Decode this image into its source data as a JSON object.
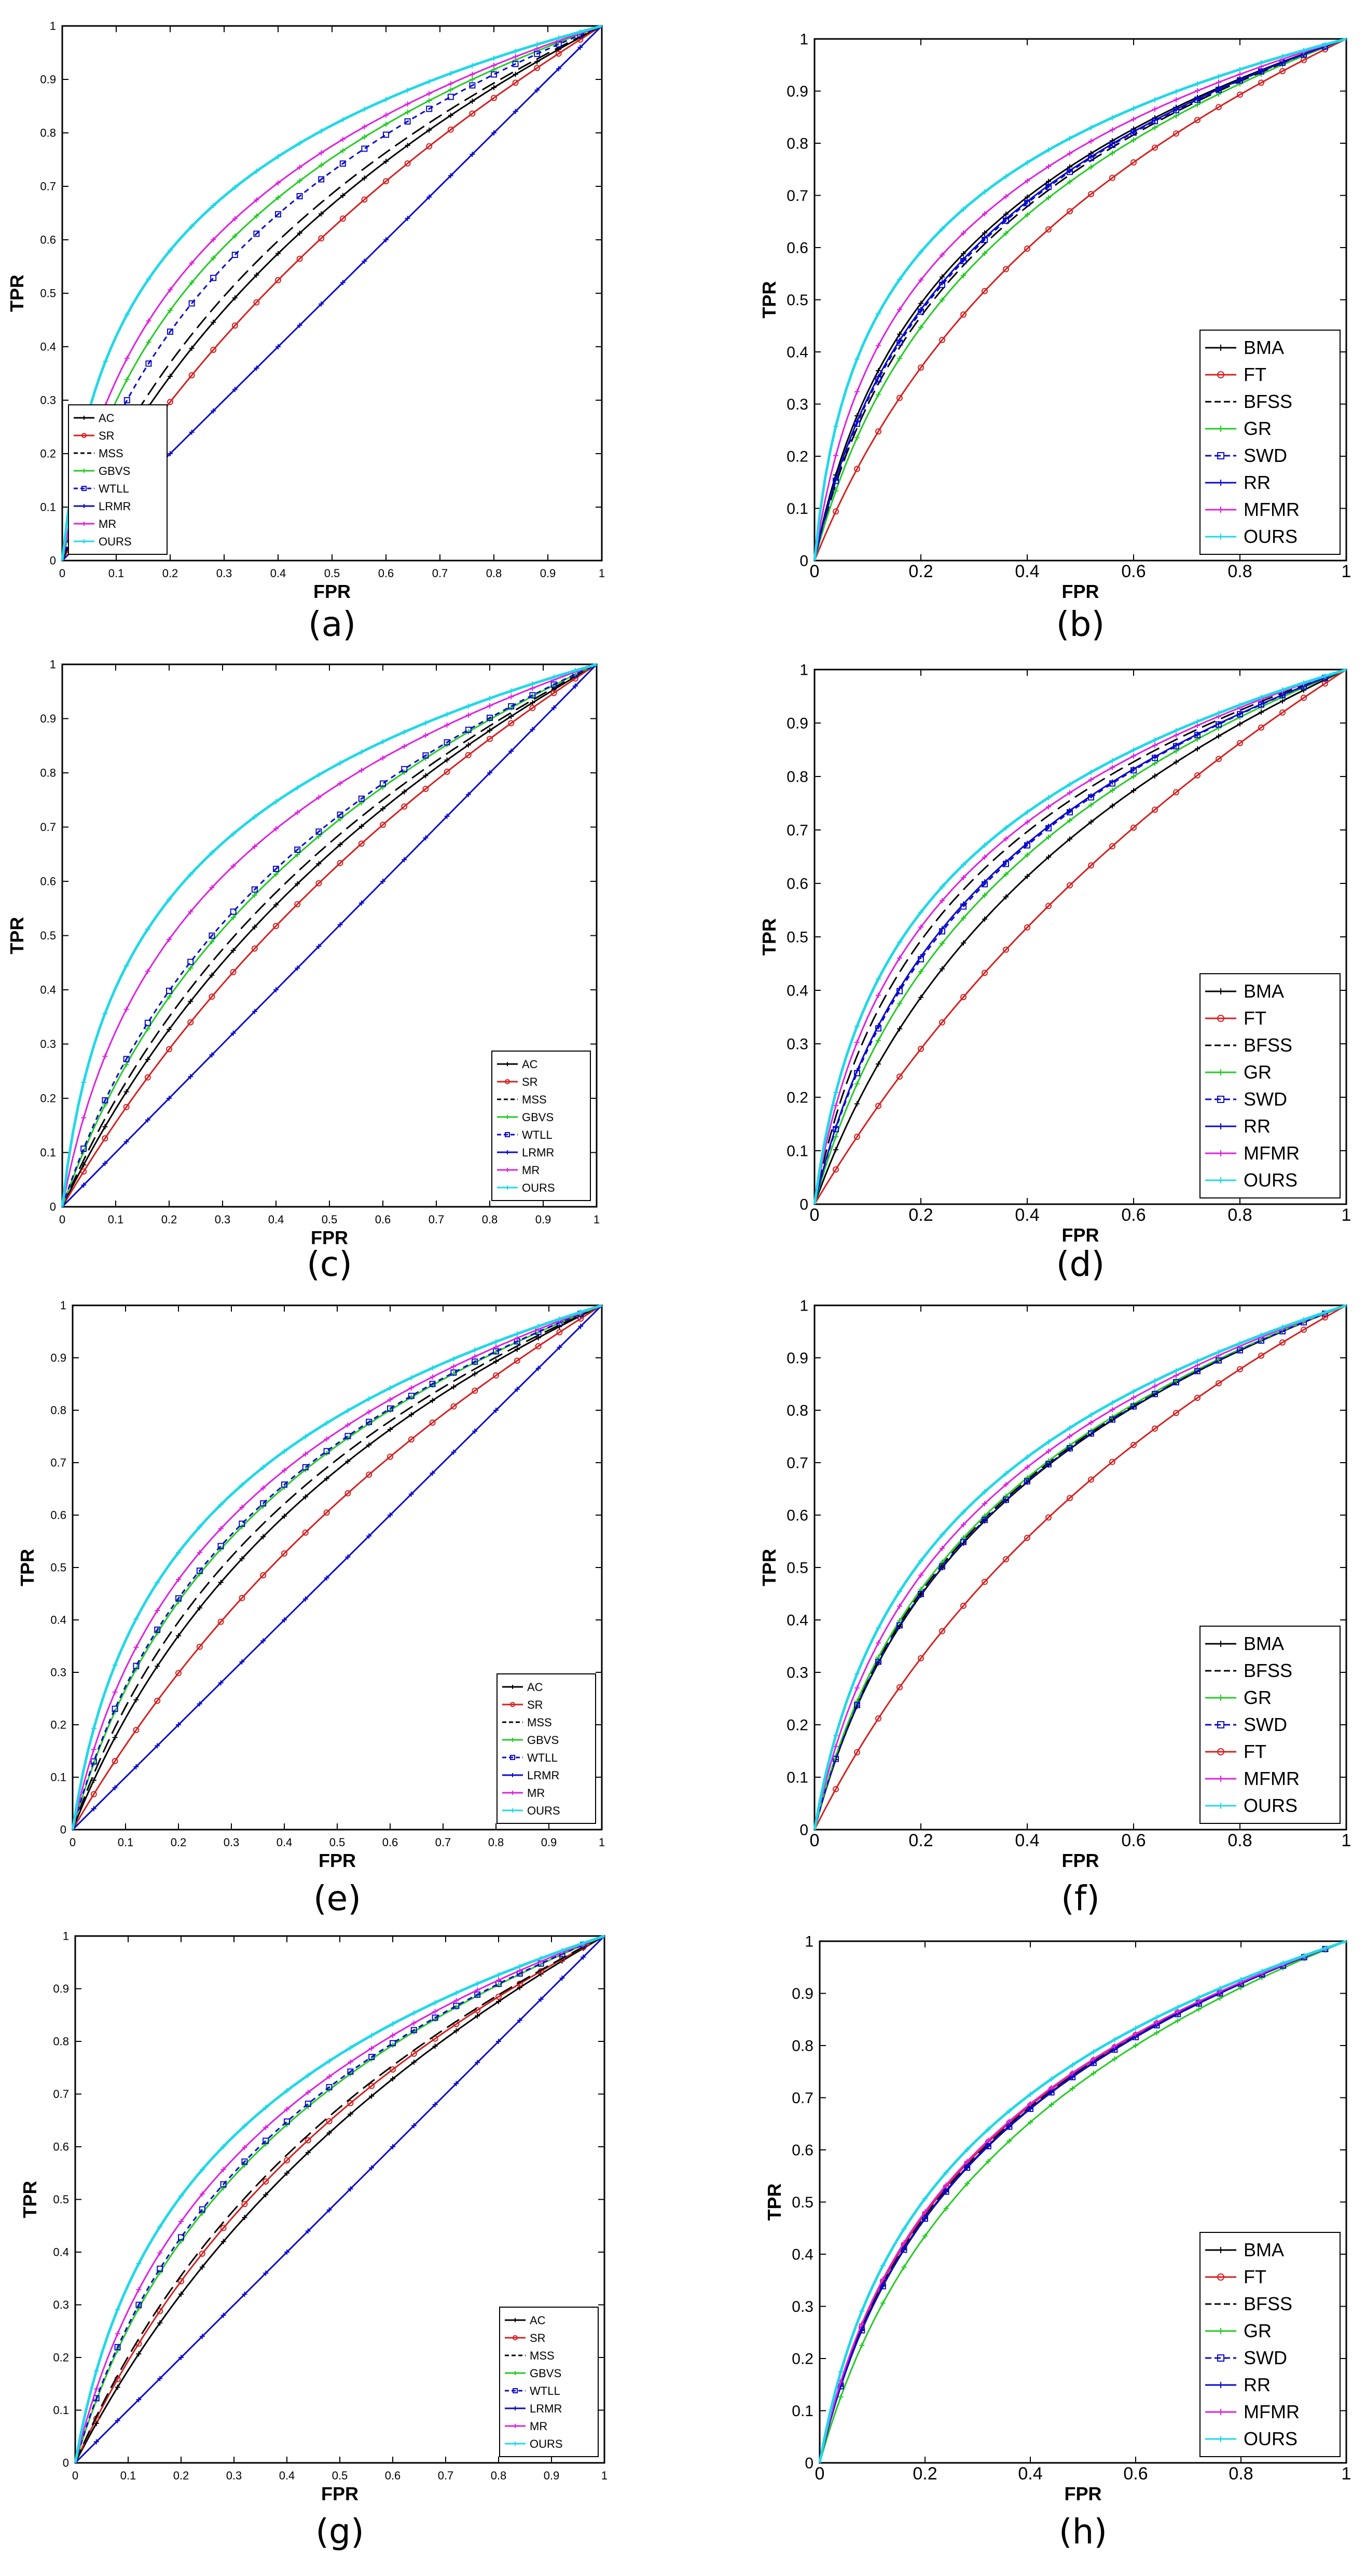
{
  "figure": {
    "colors": {
      "AC": "#000000",
      "SR": "#d62020",
      "MSS": "#000000",
      "GBVS": "#22cc22",
      "WTLL": "#0a0acc",
      "LRMR": "#0a0acc",
      "MR": "#e020e0",
      "OURS": "#20d8e8",
      "BMA": "#000000",
      "FT": "#d62020",
      "BFSS": "#000000",
      "GR": "#22cc22",
      "SWD": "#0a0acc",
      "RR": "#0a0acc",
      "MFMR": "#e020e0"
    }
  },
  "chart_data": [
    {
      "id": "a",
      "type": "line",
      "title": "",
      "caption": "(a)",
      "xlabel": "FPR",
      "ylabel": "TPR",
      "xlim": [
        0,
        1
      ],
      "ylim": [
        0,
        1
      ],
      "xticks": [
        "0",
        "0.1",
        "0.2",
        "0.3",
        "0.4",
        "0.5",
        "0.6",
        "0.7",
        "0.8",
        "0.9",
        "1"
      ],
      "yticks": [
        "0",
        "0.1",
        "0.2",
        "0.3",
        "0.4",
        "0.5",
        "0.6",
        "0.7",
        "0.8",
        "0.9",
        "1"
      ],
      "legend_position": "bottom-left",
      "series": [
        {
          "name": "AC",
          "k": 3.2
        },
        {
          "name": "SR",
          "k": 1.75
        },
        {
          "name": "MSS",
          "k": 4.2
        },
        {
          "name": "GBVS",
          "k": 11
        },
        {
          "name": "WTLL",
          "k": 7.5
        },
        {
          "name": "LRMR",
          "k": 0
        },
        {
          "name": "MR",
          "k": 16
        },
        {
          "name": "OURS",
          "k": 35
        }
      ]
    },
    {
      "id": "b",
      "type": "line",
      "title": "",
      "caption": "(b)",
      "xlabel": "FPR",
      "ylabel": "TPR",
      "xlim": [
        0,
        1
      ],
      "ylim": [
        0,
        1
      ],
      "xticks": [
        "0",
        "0.2",
        "0.4",
        "0.6",
        "0.8",
        "1"
      ],
      "yticks": [
        "0",
        "0.1",
        "0.2",
        "0.3",
        "0.4",
        "0.5",
        "0.6",
        "0.7",
        "0.8",
        "0.9",
        "1"
      ],
      "legend_position": "bottom-right",
      "series": [
        {
          "name": "BMA",
          "k": 14
        },
        {
          "name": "FT",
          "k": 4.2
        },
        {
          "name": "BFSS",
          "k": 11
        },
        {
          "name": "GR",
          "k": 9
        },
        {
          "name": "SWD",
          "k": 12
        },
        {
          "name": "RR",
          "k": 12.5
        },
        {
          "name": "MFMR",
          "k": 22
        },
        {
          "name": "OURS",
          "k": 40
        }
      ]
    },
    {
      "id": "c",
      "type": "line",
      "title": "",
      "caption": "(c)",
      "xlabel": "FPR",
      "ylabel": "TPR",
      "xlim": [
        0,
        1
      ],
      "ylim": [
        0,
        1
      ],
      "xticks": [
        "0",
        "0.1",
        "0.2",
        "0.3",
        "0.4",
        "0.5",
        "0.6",
        "0.7",
        "0.8",
        "0.9",
        "1"
      ],
      "yticks": [
        "0",
        "0.1",
        "0.2",
        "0.3",
        "0.4",
        "0.5",
        "0.6",
        "0.7",
        "0.8",
        "0.9",
        "1"
      ],
      "legend_position": "bottom-right",
      "series": [
        {
          "name": "AC",
          "k": 2.6
        },
        {
          "name": "SR",
          "k": 1.6
        },
        {
          "name": "MSS",
          "k": 3.4
        },
        {
          "name": "GBVS",
          "k": 5
        },
        {
          "name": "WTLL",
          "k": 5.6
        },
        {
          "name": "LRMR",
          "k": 0
        },
        {
          "name": "MR",
          "k": 14
        },
        {
          "name": "OURS",
          "k": 30
        }
      ]
    },
    {
      "id": "d",
      "type": "line",
      "title": "",
      "caption": "(d)",
      "xlabel": "FPR",
      "ylabel": "TPR",
      "xlim": [
        0,
        1
      ],
      "ylim": [
        0,
        1
      ],
      "xticks": [
        "0",
        "0.2",
        "0.4",
        "0.6",
        "0.8",
        "1"
      ],
      "yticks": [
        "0",
        "0.1",
        "0.2",
        "0.3",
        "0.4",
        "0.5",
        "0.6",
        "0.7",
        "0.8",
        "0.9",
        "1"
      ],
      "legend_position": "bottom-right",
      "series": [
        {
          "name": "BMA",
          "k": 5
        },
        {
          "name": "FT",
          "k": 1.6
        },
        {
          "name": "BFSS",
          "k": 14
        },
        {
          "name": "GR",
          "k": 8
        },
        {
          "name": "SWD",
          "k": 10
        },
        {
          "name": "RR",
          "k": 10.5
        },
        {
          "name": "MFMR",
          "k": 18
        },
        {
          "name": "OURS",
          "k": 24
        }
      ]
    },
    {
      "id": "e",
      "type": "line",
      "title": "",
      "caption": "(e)",
      "xlabel": "FPR",
      "ylabel": "TPR",
      "xlim": [
        0,
        1
      ],
      "ylim": [
        0,
        1
      ],
      "xticks": [
        "0",
        "0.1",
        "0.2",
        "0.3",
        "0.4",
        "0.5",
        "0.6",
        "0.7",
        "0.8",
        "0.9",
        "1"
      ],
      "yticks": [
        "0",
        "0.1",
        "0.2",
        "0.3",
        "0.4",
        "0.5",
        "0.6",
        "0.7",
        "0.8",
        "0.9",
        "1"
      ],
      "legend_position": "bottom-right",
      "series": [
        {
          "name": "AC",
          "k": 4.2
        },
        {
          "name": "SR",
          "k": 1.8
        },
        {
          "name": "MSS",
          "k": 5.5
        },
        {
          "name": "GBVS",
          "k": 8
        },
        {
          "name": "WTLL",
          "k": 8.5
        },
        {
          "name": "LRMR",
          "k": 0
        },
        {
          "name": "MR",
          "k": 12
        },
        {
          "name": "OURS",
          "k": 20
        }
      ]
    },
    {
      "id": "f",
      "type": "line",
      "title": "",
      "caption": "(f)",
      "xlabel": "FPR",
      "ylabel": "TPR",
      "xlim": [
        0,
        1
      ],
      "ylim": [
        0,
        1
      ],
      "xticks": [
        "0",
        "0.2",
        "0.4",
        "0.6",
        "0.8",
        "1"
      ],
      "yticks": [
        "0",
        "0.1",
        "0.2",
        "0.3",
        "0.4",
        "0.5",
        "0.6",
        "0.7",
        "0.8",
        "0.9",
        "1"
      ],
      "legend_position": "bottom-right",
      "series": [
        {
          "name": "BMA",
          "k": 9
        },
        {
          "name": "BFSS",
          "k": 9.5
        },
        {
          "name": "GR",
          "k": 10
        },
        {
          "name": "SWD",
          "k": 9.2
        },
        {
          "name": "FT",
          "k": 2.6
        },
        {
          "name": "MFMR",
          "k": 13
        },
        {
          "name": "OURS",
          "k": 17
        }
      ]
    },
    {
      "id": "g",
      "type": "line",
      "title": "",
      "caption": "(g)",
      "xlabel": "FPR",
      "ylabel": "TPR",
      "xlim": [
        0,
        1
      ],
      "ylim": [
        0,
        1
      ],
      "xticks": [
        "0",
        "0.1",
        "0.2",
        "0.3",
        "0.4",
        "0.5",
        "0.6",
        "0.7",
        "0.8",
        "0.9",
        "1"
      ],
      "yticks": [
        "0",
        "0.1",
        "0.2",
        "0.3",
        "0.4",
        "0.5",
        "0.6",
        "0.7",
        "0.8",
        "0.9",
        "1"
      ],
      "legend_position": "bottom-right",
      "series": [
        {
          "name": "AC",
          "k": 2.4
        },
        {
          "name": "SR",
          "k": 3.2
        },
        {
          "name": "MSS",
          "k": 3.6
        },
        {
          "name": "GBVS",
          "k": 7
        },
        {
          "name": "WTLL",
          "k": 7.5
        },
        {
          "name": "LRMR",
          "k": 0
        },
        {
          "name": "MR",
          "k": 10
        },
        {
          "name": "OURS",
          "k": 16
        }
      ]
    },
    {
      "id": "h",
      "type": "line",
      "title": "",
      "caption": "(h)",
      "xlabel": "FPR",
      "ylabel": "TPR",
      "xlim": [
        0,
        1
      ],
      "ylim": [
        0,
        1
      ],
      "xticks": [
        "0",
        "0.2",
        "0.4",
        "0.6",
        "0.8",
        "1"
      ],
      "yticks": [
        "0",
        "0.1",
        "0.2",
        "0.3",
        "0.4",
        "0.5",
        "0.6",
        "0.7",
        "0.8",
        "0.9",
        "1"
      ],
      "legend_position": "bottom-right",
      "series": [
        {
          "name": "BMA",
          "k": 11
        },
        {
          "name": "FT",
          "k": 12
        },
        {
          "name": "BFSS",
          "k": 11.5
        },
        {
          "name": "GR",
          "k": 8
        },
        {
          "name": "SWD",
          "k": 11
        },
        {
          "name": "RR",
          "k": 11.2
        },
        {
          "name": "MFMR",
          "k": 12.5
        },
        {
          "name": "OURS",
          "k": 16
        }
      ]
    }
  ]
}
